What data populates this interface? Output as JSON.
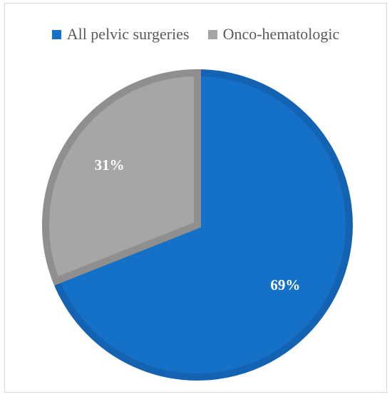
{
  "chart_data": {
    "type": "pie",
    "title": "",
    "categories": [
      "All pelvic surgeries",
      "Onco-hematologic"
    ],
    "values": [
      69,
      31
    ],
    "data_labels": [
      "69%",
      "31%"
    ],
    "colors": [
      "#1570c8",
      "#a6a6a6"
    ],
    "border_colors": [
      "#1463b3",
      "#8f8f8f"
    ],
    "legend_position": "top",
    "start": "12 o'clock, clockwise"
  }
}
